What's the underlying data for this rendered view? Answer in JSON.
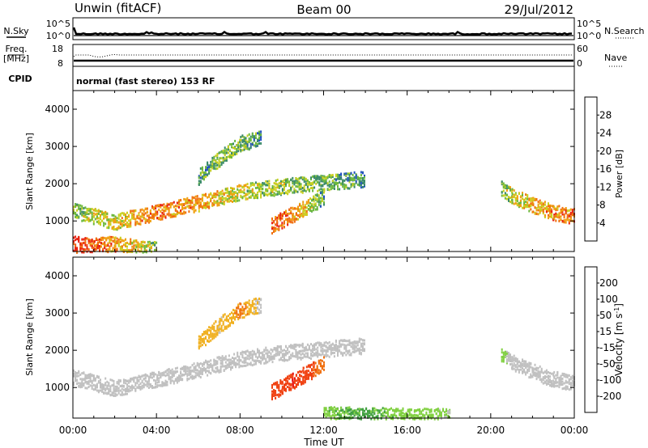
{
  "header": {
    "station": "Unwin (fitACF)",
    "beam": "Beam 00",
    "date": "29/Jul/2012"
  },
  "aux_panels": {
    "nsky_label": "N.Sky",
    "nsky_ticks": [
      "10^5",
      "10^0"
    ],
    "nsearch_label": "N.Search",
    "nsearch_ticks": [
      "10^5",
      "10^0"
    ],
    "freq_label": "Freq.",
    "freq_unit": "[MHz]",
    "freq_ticks": [
      "18",
      "8"
    ],
    "nave_label": "Nave",
    "nave_ticks": [
      "60",
      "0"
    ],
    "cpid_label": "CPID",
    "cpid_value": "normal (fast stereo) 153 RF"
  },
  "chart_data": [
    {
      "type": "heatmap",
      "panel": "power",
      "ylabel": "Slant Range [km]",
      "xlabel": "",
      "x_ticks": [
        "00:00",
        "04:00",
        "08:00",
        "12:00",
        "16:00",
        "20:00",
        "00:00"
      ],
      "y_ticks": [
        "1000",
        "2000",
        "3000",
        "4000"
      ],
      "xlim_hours": [
        0,
        24
      ],
      "ylim_km": [
        180,
        4500
      ],
      "colorbar_label": "Power [dB]",
      "colorbar_ticks": [
        "4",
        "8",
        "12",
        "16",
        "20",
        "24",
        "28"
      ],
      "colorbar_range": [
        0,
        30
      ],
      "colors": [
        "#1010ff",
        "#2050c0",
        "#3a8a6a",
        "#6cb83c",
        "#c8d020",
        "#f0a010",
        "#f07010",
        "#e82010"
      ],
      "features": [
        {
          "name": "main band 00-14 UT",
          "t": [
            0,
            2,
            4,
            6,
            8,
            10,
            12,
            14
          ],
          "range_km": [
            1300,
            1000,
            1250,
            1500,
            1800,
            1950,
            2050,
            2150
          ],
          "level_db": [
            14,
            18,
            24,
            22,
            16,
            14,
            12,
            10
          ]
        },
        {
          "name": "upper arc 06-09 UT",
          "t": [
            6,
            7,
            8,
            9
          ],
          "range_km": [
            2200,
            2700,
            3100,
            3250
          ],
          "level_db": [
            10,
            14,
            12,
            10
          ]
        },
        {
          "name": "near-range echoes 00-04 UT",
          "t": [
            0,
            1,
            2,
            3,
            4
          ],
          "range_km": [
            400,
            350,
            420,
            300,
            250
          ],
          "level_db": [
            28,
            26,
            22,
            18,
            14
          ]
        },
        {
          "name": "patch 09.5-12 UT",
          "t": [
            9.5,
            10,
            10.5,
            11,
            11.5,
            12
          ],
          "range_km": [
            900,
            1050,
            1200,
            1350,
            1500,
            1650
          ],
          "level_db": [
            26,
            26,
            24,
            20,
            14,
            10
          ]
        },
        {
          "name": "evening band 20.5-24 UT",
          "t": [
            20.5,
            21,
            22,
            23,
            24
          ],
          "range_km": [
            1900,
            1700,
            1450,
            1250,
            1150
          ],
          "level_db": [
            14,
            16,
            20,
            22,
            24
          ]
        }
      ]
    },
    {
      "type": "heatmap",
      "panel": "velocity",
      "ylabel": "Slant Range [km]",
      "xlabel": "Time UT",
      "x_ticks": [
        "00:00",
        "04:00",
        "08:00",
        "12:00",
        "16:00",
        "20:00",
        "00:00"
      ],
      "y_ticks": [
        "1000",
        "2000",
        "3000",
        "4000"
      ],
      "xlim_hours": [
        0,
        24
      ],
      "ylim_km": [
        180,
        4500
      ],
      "colorbar_label": "Velocity [m s",
      "colorbar_label_sup": "-1",
      "colorbar_label_end": "]",
      "colorbar_ticks": [
        "200",
        "100",
        "50",
        "15",
        "-15",
        "-50",
        "-100",
        "-200"
      ],
      "colors": [
        "#2030c0",
        "#2a7a3a",
        "#40a040",
        "#80d040",
        "#c0c0c0",
        "#f0b020",
        "#f07010",
        "#f04010",
        "#e81010"
      ],
      "features": [
        {
          "name": "main band (ground scatter)",
          "t": [
            0,
            2,
            4,
            6,
            8,
            10,
            12,
            14
          ],
          "range_km": [
            1300,
            1000,
            1250,
            1500,
            1800,
            1950,
            2050,
            2150
          ],
          "velocity": [
            0,
            0,
            0,
            0,
            0,
            0,
            0,
            0
          ]
        },
        {
          "name": "upper arc 06-09 UT",
          "t": [
            6,
            7,
            8,
            9
          ],
          "range_km": [
            2200,
            2700,
            3100,
            3250
          ],
          "velocity": [
            -40,
            -20,
            -60,
            0
          ]
        },
        {
          "name": "patch 09.5-12 UT",
          "t": [
            9.5,
            10,
            10.5,
            11,
            11.5,
            12
          ],
          "range_km": [
            900,
            1050,
            1200,
            1350,
            1500,
            1650
          ],
          "velocity": [
            -120,
            -150,
            -200,
            -180,
            -100,
            -60
          ]
        },
        {
          "name": "near-range ionospheric 12-18 UT",
          "t": [
            12,
            14,
            16,
            18
          ],
          "range_km": [
            300,
            280,
            260,
            250
          ],
          "velocity": [
            40,
            60,
            30,
            20
          ]
        },
        {
          "name": "evening band 20.5-24 UT",
          "t": [
            20.5,
            21,
            22,
            23,
            24
          ],
          "range_km": [
            1900,
            1700,
            1450,
            1250,
            1150
          ],
          "velocity": [
            30,
            0,
            0,
            0,
            0
          ]
        }
      ]
    }
  ]
}
